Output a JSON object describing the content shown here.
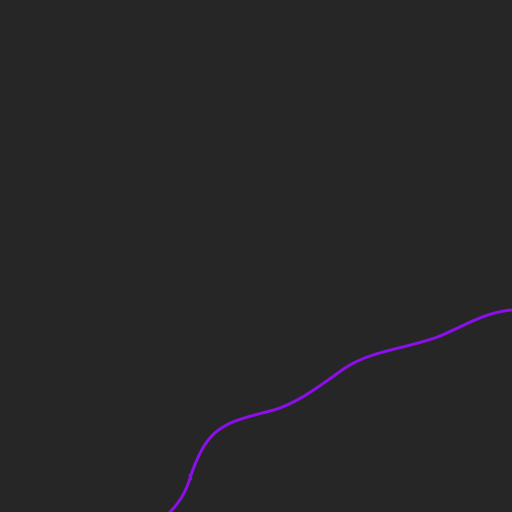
{
  "canvas": {
    "background_color": "#262626"
  },
  "curve": {
    "stroke_color": "#8A0FE8",
    "icon": "wavy-curve-stroke"
  }
}
